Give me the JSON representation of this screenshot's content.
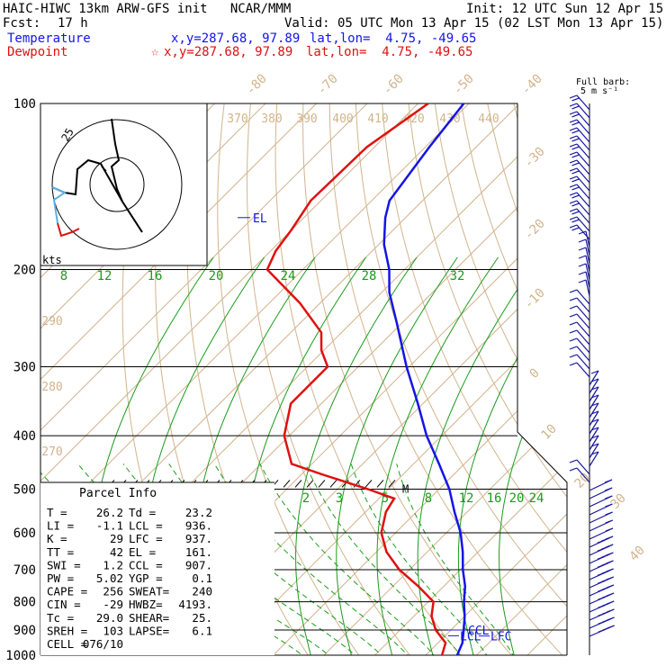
{
  "header": {
    "model_line": "HAIC-HIWC 13km ARW-GFS init   NCAR/MMM",
    "init_line": "Init: 12 UTC Sun 12 Apr 15",
    "fcst_label": "Fcst:",
    "fcst_value": "17 h",
    "valid_line": "Valid: 05 UTC Mon 13 Apr 15 (02 LST Mon 13 Apr 15)",
    "temperature_label": "Temperature",
    "temperature_coords": "x,y=287.68, 97.89",
    "temperature_latlon": "lat,lon=  4.75, -49.65",
    "dewpoint_label": "Dewpoint",
    "dewpoint_coords": "x,y=287.68, 97.89",
    "dewpoint_latlon": "lat,lon=  4.75, -49.65",
    "barb_key_line1": "Full barb:",
    "barb_key_line2": "5 m s⁻¹",
    "hodo_units": "kts",
    "hodo_ring_label": "25"
  },
  "colors": {
    "temperature": "#1414e6",
    "dewpoint": "#e01010",
    "isotherm": "#d2b48c",
    "mixing_ratio": "#1a9c1a",
    "pressure_line": "#000000",
    "wind_barb": "#1414a0"
  },
  "parcel_info": {
    "title": "Parcel Info",
    "rows": [
      [
        "T  =",
        "26.2",
        "Td =",
        "23.2"
      ],
      [
        "LI =",
        "-1.1",
        "LCL =",
        "936."
      ],
      [
        "K  =",
        "29",
        "LFC =",
        "937."
      ],
      [
        "TT =",
        "42",
        "EL  =",
        "161."
      ],
      [
        "SWI =",
        "1.2",
        "CCL =",
        "907."
      ],
      [
        "PW =",
        "5.02",
        "YGP =",
        "0.1"
      ],
      [
        "CAPE =",
        "256",
        "SWEAT=",
        "240"
      ],
      [
        "CIN =",
        "-29",
        "HWBZ=",
        "4193."
      ],
      [
        "Tc =",
        "29.0",
        "SHEAR=",
        "25."
      ],
      [
        "SREH =",
        "103",
        "LAPSE=",
        "6.1"
      ],
      [
        "CELL =",
        "076/10",
        "",
        ""
      ]
    ]
  },
  "chart_data": {
    "type": "line",
    "chart_kind": "skew-T log-p sounding",
    "y_axis": {
      "scale": "log",
      "range": [
        1000,
        100
      ],
      "ticks": [
        100,
        200,
        300,
        400,
        500,
        600,
        700,
        800,
        900,
        1000
      ]
    },
    "isotherm_labels": [
      "-80",
      "-70",
      "-60",
      "-50",
      "-40",
      "-30",
      "-20",
      "-10",
      "0",
      "10",
      "20",
      "30",
      "40"
    ],
    "theta_labels": [
      "370",
      "380",
      "390",
      "400",
      "410",
      "420",
      "430",
      "440",
      "290",
      "280",
      "270"
    ],
    "mixing_ratio_labels_upper": [
      "8",
      "12",
      "16",
      "20",
      "24",
      "28",
      "32"
    ],
    "mixing_ratio_labels_lower": [
      "2",
      "3",
      "5",
      "8",
      "12",
      "16",
      "20",
      "24"
    ],
    "series": [
      {
        "name": "Temperature",
        "points": [
          [
            100,
            -81.0
          ],
          [
            120,
            -79.2
          ],
          [
            150,
            -76.5
          ],
          [
            161,
            -74.0
          ],
          [
            180,
            -69.0
          ],
          [
            200,
            -63.0
          ],
          [
            220,
            -58.5
          ],
          [
            250,
            -51.0
          ],
          [
            300,
            -40.5
          ],
          [
            350,
            -31.0
          ],
          [
            400,
            -23.0
          ],
          [
            450,
            -15.0
          ],
          [
            500,
            -8.0
          ],
          [
            550,
            -2.5
          ],
          [
            600,
            2.8
          ],
          [
            650,
            7.0
          ],
          [
            700,
            10.5
          ],
          [
            750,
            14.2
          ],
          [
            800,
            17.0
          ],
          [
            850,
            20.0
          ],
          [
            900,
            22.5
          ],
          [
            950,
            24.8
          ],
          [
            1000,
            26.2
          ]
        ]
      },
      {
        "name": "Dewpoint",
        "points": [
          [
            100,
            -88.0
          ],
          [
            120,
            -91.5
          ],
          [
            150,
            -92.0
          ],
          [
            170,
            -90.0
          ],
          [
            185,
            -89.0
          ],
          [
            200,
            -87.0
          ],
          [
            230,
            -74.0
          ],
          [
            260,
            -64.0
          ],
          [
            280,
            -60.5
          ],
          [
            300,
            -56.0
          ],
          [
            350,
            -56.0
          ],
          [
            400,
            -51.0
          ],
          [
            450,
            -44.0
          ],
          [
            470,
            -36.0
          ],
          [
            500,
            -24.0
          ],
          [
            520,
            -17.0
          ],
          [
            550,
            -16.0
          ],
          [
            600,
            -12.8
          ],
          [
            650,
            -8.0
          ],
          [
            700,
            -2.0
          ],
          [
            750,
            5.0
          ],
          [
            800,
            11.0
          ],
          [
            850,
            13.5
          ],
          [
            900,
            17.0
          ],
          [
            950,
            21.5
          ],
          [
            1000,
            23.2
          ]
        ]
      }
    ],
    "level_markers": [
      {
        "label": "EL",
        "pressure": 161
      },
      {
        "label": "CCL",
        "pressure": 907
      },
      {
        "label": "LCL",
        "pressure": 936
      },
      {
        "label": "LFC",
        "pressure": 937
      },
      {
        "label": "M",
        "pressure": 500
      }
    ]
  }
}
